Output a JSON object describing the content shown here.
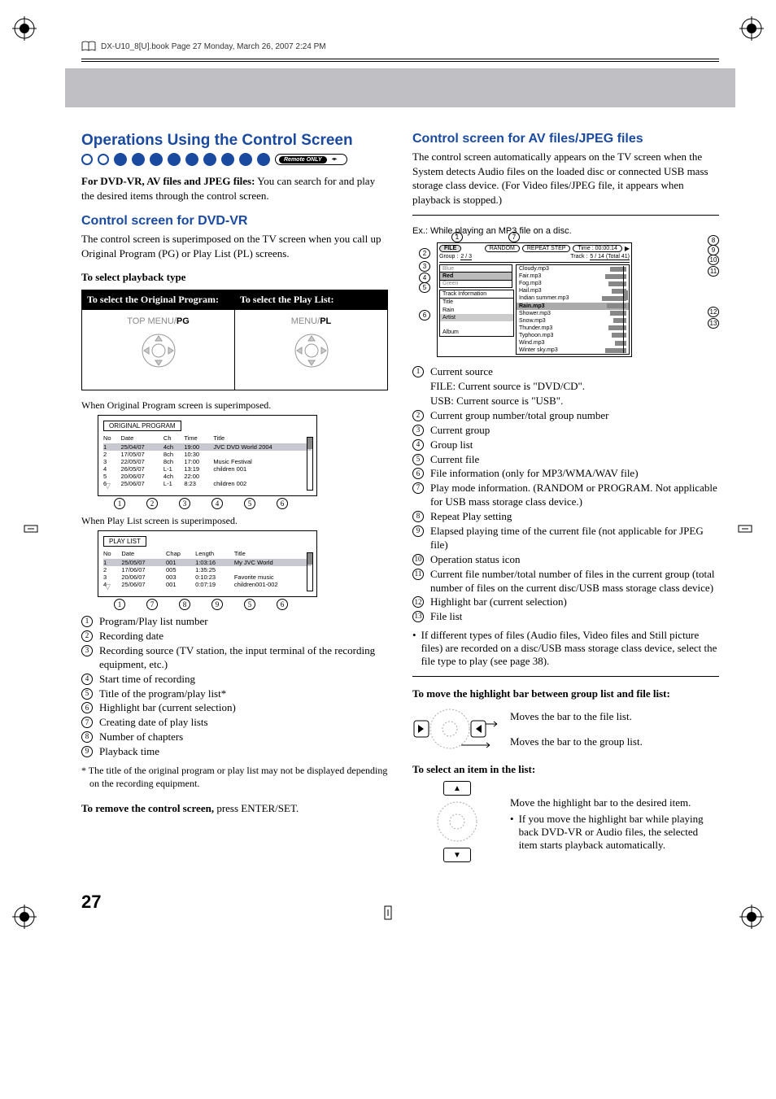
{
  "header": {
    "book_line": "DX-U10_8[U].book  Page 27  Monday, March 26, 2007  2:24 PM"
  },
  "left": {
    "section_title": "Operations Using the Control Screen",
    "remote_label": "Remote ONLY",
    "intro_bold": "For DVD-VR, AV files and JPEG files:",
    "intro_rest": " You can search for and play the desired items through the control screen.",
    "dvdvr_title": "Control screen for DVD-VR",
    "dvdvr_para": "The control screen is superimposed on the TV screen when you call up Original Program (PG) or Play List (PL) screens.",
    "playback_heading": "To select playback type",
    "table": {
      "h1": "To select the Original Program:",
      "h2": "To select the Play List:",
      "c1_gray": "TOP MENU/",
      "c1_bold": "PG",
      "c2_gray": "MENU/",
      "c2_bold": "PL"
    },
    "orig_caption": "When Original Program screen is superimposed.",
    "orig_box_title": "ORIGINAL PROGRAM",
    "orig_cols": [
      "No",
      "Date",
      "Ch",
      "Time",
      "Title"
    ],
    "orig_rows": [
      [
        "1",
        "25/04/07",
        "4ch",
        "19:00",
        "JVC DVD World 2004"
      ],
      [
        "2",
        "17/05/07",
        "8ch",
        "10:30",
        ""
      ],
      [
        "3",
        "22/05/07",
        "8ch",
        "17:00",
        "Music Festival"
      ],
      [
        "4",
        "26/05/07",
        "L-1",
        "13:19",
        "children 001"
      ],
      [
        "5",
        "20/06/07",
        "4ch",
        "22:00",
        ""
      ],
      [
        "6",
        "25/06/07",
        "L-1",
        "8:23",
        "children 002"
      ]
    ],
    "orig_callouts": [
      "1",
      "2",
      "3",
      "4",
      "5",
      "6"
    ],
    "pl_caption": "When Play List screen is superimposed.",
    "pl_box_title": "PLAY LIST",
    "pl_cols": [
      "No",
      "Date",
      "Chap",
      "Length",
      "Title"
    ],
    "pl_rows": [
      [
        "1",
        "25/05/07",
        "001",
        "1:03:16",
        "My JVC World"
      ],
      [
        "2",
        "17/06/07",
        "005",
        "1:35:25",
        ""
      ],
      [
        "3",
        "20/06/07",
        "003",
        "0:10:23",
        "Favorite music"
      ],
      [
        "4",
        "25/06/07",
        "001",
        "0:07:19",
        "children001-002"
      ]
    ],
    "pl_callouts": [
      "1",
      "7",
      "8",
      "9",
      "5",
      "6"
    ],
    "legend": [
      "Program/Play list number",
      "Recording date",
      "Recording source (TV station, the input terminal of the recording equipment, etc.)",
      "Start time of recording",
      "Title of the program/play list*",
      "Highlight bar (current selection)",
      "Creating date of play lists",
      "Number of chapters",
      "Playback time"
    ],
    "footnote": "* The title of the original program or play list may not be displayed depending on the recording equipment.",
    "remove_bold": "To remove the control screen,",
    "remove_rest": " press ENTER/SET."
  },
  "right": {
    "section_title": "Control screen for AV files/JPEG files",
    "para": "The control screen automatically appears on the TV screen when the System detects Audio files on the loaded disc or connected USB mass storage class device. (For Video files/JPEG file, it appears when playback is stopped.)",
    "ex_label": "Ex.: While playing an MP3 file on a disc.",
    "av": {
      "file_pill": "FILE",
      "random": "RANDOM",
      "repeat": "REPEAT STEP",
      "time": "Time :  00:00:14",
      "play_icon": "▶",
      "group_label": "Group :",
      "group_val": "2 / 3",
      "track_label": "Track :",
      "track_val": "5 / 14 (Total 41)",
      "left_items": [
        "Blue",
        "Red",
        "Green"
      ],
      "left_selected_index": 1,
      "info_title": "Track Information",
      "info_rows": [
        "Title",
        "Rain",
        "Artist",
        "",
        "Album"
      ],
      "info_hl_index": 2,
      "right_items": [
        {
          "name": "Cloudy.mp3",
          "bar": 20
        },
        {
          "name": "Fair.mp3",
          "bar": 26
        },
        {
          "name": "Fog.mp3",
          "bar": 22
        },
        {
          "name": "Hail.mp3",
          "bar": 18
        },
        {
          "name": "Indian summer.mp3",
          "bar": 30
        },
        {
          "name": "Rain.mp3",
          "bar": 24
        },
        {
          "name": "Shower.mp3",
          "bar": 20
        },
        {
          "name": "Snow.mp3",
          "bar": 16
        },
        {
          "name": "Thunder.mp3",
          "bar": 22
        },
        {
          "name": "Typhoon.mp3",
          "bar": 18
        },
        {
          "name": "Wind.mp3",
          "bar": 14
        },
        {
          "name": "Winter sky.mp3",
          "bar": 26
        }
      ],
      "right_hl_index": 5
    },
    "legend": [
      {
        "n": "1",
        "t": "Current source"
      },
      {
        "n": "1a",
        "t": "FILE: Current source is \"DVD/CD\"."
      },
      {
        "n": "1b",
        "t": "USB: Current source is \"USB\"."
      },
      {
        "n": "2",
        "t": "Current group number/total group number"
      },
      {
        "n": "3",
        "t": "Current group"
      },
      {
        "n": "4",
        "t": "Group list"
      },
      {
        "n": "5",
        "t": "Current file"
      },
      {
        "n": "6",
        "t": "File information (only for MP3/WMA/WAV file)"
      },
      {
        "n": "7",
        "t": "Play mode information. (RANDOM or PROGRAM. Not applicable for USB mass storage class device.)"
      },
      {
        "n": "8",
        "t": "Repeat Play setting"
      },
      {
        "n": "9",
        "t": "Elapsed playing time of the current file (not applicable for JPEG file)"
      },
      {
        "n": "10",
        "t": "Operation status icon"
      },
      {
        "n": "11",
        "t": "Current file number/total number of files in the current group (total number of files on the current disc/USB mass storage class device)"
      },
      {
        "n": "12",
        "t": "Highlight bar (current selection)"
      },
      {
        "n": "13",
        "t": "File list"
      }
    ],
    "bullet_note": "If different types of files (Audio files, Video files and Still picture files) are recorded on a disc/USB mass storage class device, select the file type to play (see page 38).",
    "move_heading": "To move the highlight bar between group list and file list:",
    "move_file": "Moves the bar to the file list.",
    "move_group": "Moves the bar to the group list.",
    "select_heading": "To select an item in the list:",
    "select_text1": "Move the highlight bar to the desired item.",
    "select_text2": "If you move the highlight bar while playing back DVD-VR or Audio files, the selected item starts playback automatically."
  },
  "page_number": "27"
}
